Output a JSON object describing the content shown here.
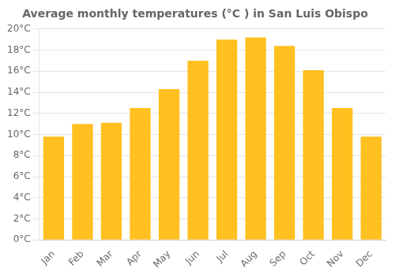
{
  "chart_data": {
    "type": "bar",
    "title": "Average monthly temperatures (°C ) in San Luis Obispo",
    "categories": [
      "Jan",
      "Feb",
      "Mar",
      "Apr",
      "May",
      "Jun",
      "Jul",
      "Aug",
      "Sep",
      "Oct",
      "Nov",
      "Dec"
    ],
    "values": [
      9.8,
      11.0,
      11.1,
      12.5,
      14.3,
      17.0,
      19.0,
      19.2,
      18.4,
      16.1,
      12.5,
      9.8
    ],
    "color": "#FFC020",
    "ylim": [
      0,
      20
    ],
    "yticks": [
      {
        "value": 0,
        "label": "0°C"
      },
      {
        "value": 2,
        "label": "2°C"
      },
      {
        "value": 4,
        "label": "4°C"
      },
      {
        "value": 6,
        "label": "6°C"
      },
      {
        "value": 8,
        "label": "8°C"
      },
      {
        "value": 10,
        "label": "10°C"
      },
      {
        "value": 12,
        "label": "12°C"
      },
      {
        "value": 14,
        "label": "14°C"
      },
      {
        "value": 16,
        "label": "16°C"
      },
      {
        "value": 18,
        "label": "18°C"
      },
      {
        "value": 20,
        "label": "20°C"
      }
    ],
    "grid": true
  }
}
